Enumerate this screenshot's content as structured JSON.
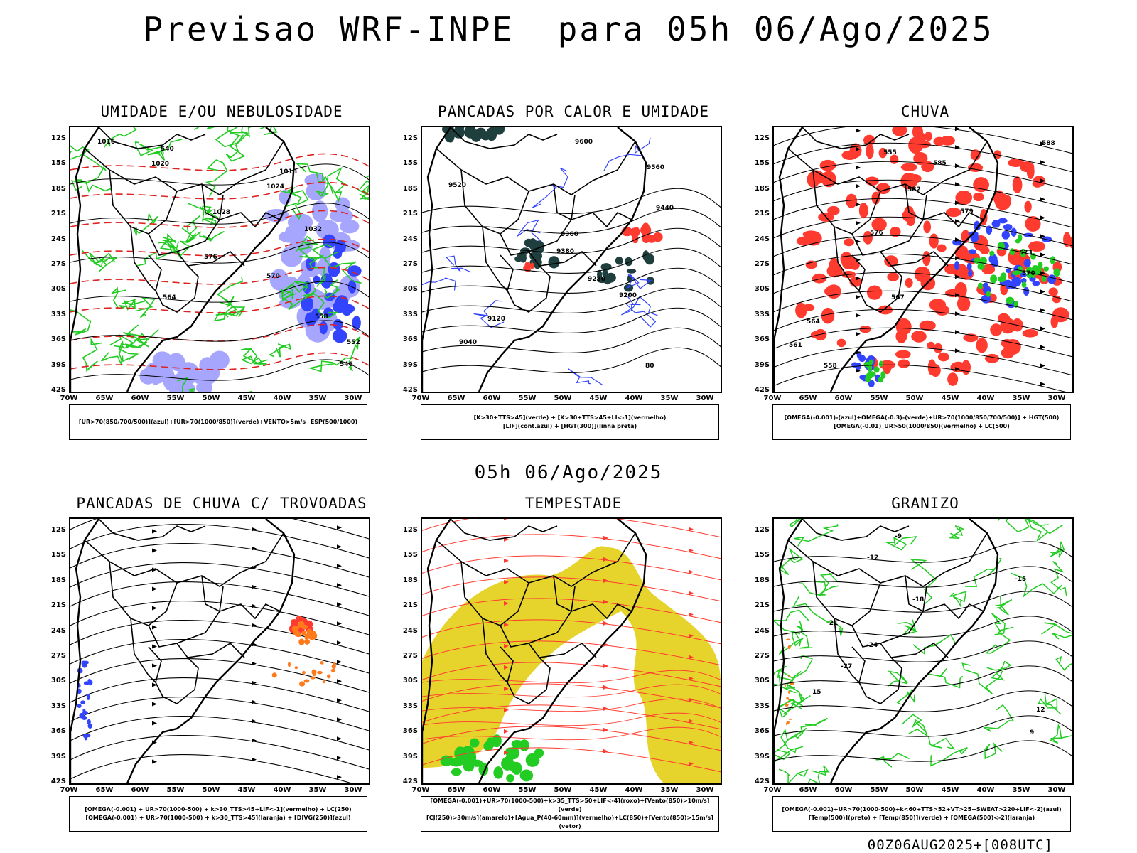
{
  "header": {
    "title": "Previsao WRF-INPE  para 05h 06/Ago/2025"
  },
  "middle": {
    "title": "05h 06/Ago/2025"
  },
  "footer": {
    "run": "00Z06AUG2025+[008UTC]"
  },
  "axes": {
    "lat_labels": [
      "12S",
      "15S",
      "18S",
      "21S",
      "24S",
      "27S",
      "30S",
      "33S",
      "36S",
      "39S",
      "42S"
    ],
    "lon_labels": [
      "70W",
      "65W",
      "60W",
      "55W",
      "50W",
      "45W",
      "40W",
      "35W",
      "30W"
    ]
  },
  "colors": {
    "green": "#22cc22",
    "red": "#ff3b30",
    "blue": "#3344ff",
    "lightblue": "#a6a6ff",
    "darkteal": "#1f3e3e",
    "yellow": "#e6d42c",
    "orange": "#ff7a1a",
    "contour": "#000000"
  },
  "panels": [
    {
      "id": "umidade",
      "title": "UMIDADE E/OU NEBULOSIDADE",
      "legend": [
        "[UR>70(850/700/500)](azul)+[UR>70(1000/850)](verde)+VENTO>5m/s+ESP(500/1000)"
      ],
      "contour_labels": [
        "1016",
        "1020",
        "1024",
        "1028",
        "1032",
        "576",
        "570",
        "564",
        "558",
        "552",
        "546",
        "540",
        "1018"
      ]
    },
    {
      "id": "pancadas",
      "title": "PANCADAS POR CALOR E UMIDADE",
      "legend": [
        "[K>30+TTS>45](verde) + [K>30+TTS>45+LI<-1](vermelho)",
        "[LIF](cont.azul) + [HGT(300)](linha preta)"
      ],
      "contour_labels": [
        "9600",
        "9560",
        "9520",
        "9440",
        "9360",
        "9380",
        "9280",
        "9200",
        "9120",
        "9040",
        "80"
      ]
    },
    {
      "id": "chuva",
      "title": "CHUVA",
      "legend": [
        "[OMEGA(-0.001)-(azul)+OMEGA(-0.3)-(verde)+UR>70(1000/850/700/500)] + HGT(500)",
        "[OMEGA(-0.01)_UR>50(1000/850)(vermelho) + LC(500)"
      ],
      "contour_labels": [
        "588",
        "585",
        "582",
        "579",
        "576",
        "573",
        "570",
        "567",
        "564",
        "561",
        "558",
        "555"
      ]
    },
    {
      "id": "trovoadas",
      "title": "PANCADAS DE CHUVA C/ TROVOADAS",
      "legend": [
        "[OMEGA(-0.001) + UR>70(1000-500) + k>30_TTS>45+LIF<-1](vermelho) + LC(250)",
        "[OMEGA(-0.001) + UR>70(1000-500) + k>30_TTS>45](laranja) + [DIVG(250)](azul)"
      ],
      "contour_labels": []
    },
    {
      "id": "tempestade",
      "title": "TEMPESTADE",
      "legend": [
        "[OMEGA(-0.001)+UR>70(1000-500)+k>35_TTS>50+LIF<-4](roxo)+[Vento(850)>10m/s](verde)",
        "[CJ(250)>30m/s](amarelo)+[Agua_P(40-60mm)](vermelho)+LC(850)+[Vento(850)>15m/s](vetor)"
      ],
      "contour_labels": []
    },
    {
      "id": "granizo",
      "title": "GRANIZO",
      "legend": [
        "[OMEGA(-0.001)+UR>70(1000-500)+k<60+TTS>52+VT>25+SWEAT>220+LIF<-2](azul)",
        "[Temp(500)](preto) + [Temp(850)](verde) + [OMEGA(500)<-2](laranja)"
      ],
      "contour_labels": [
        "-9",
        "-12",
        "-15",
        "-18",
        "-21",
        "-24",
        "-27",
        "15",
        "12",
        "9"
      ]
    }
  ]
}
